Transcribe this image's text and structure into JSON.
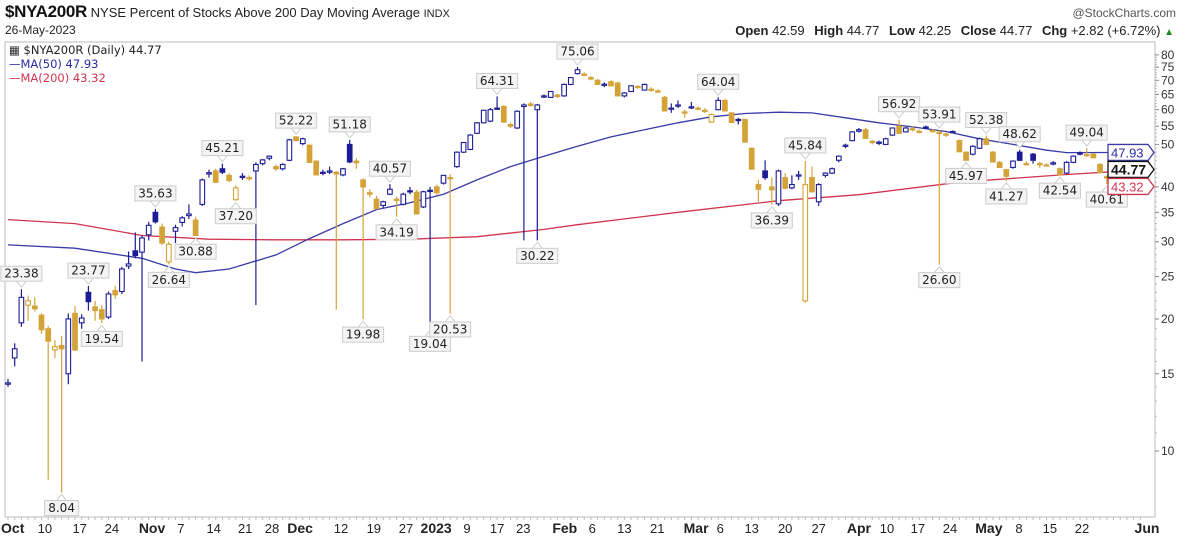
{
  "header": {
    "symbol": "$NYA200R",
    "description": "NYSE Percent of Stocks Above 200 Day Moving Average",
    "exchange": "INDX",
    "date": "26-May-2023",
    "copyright": "@StockCharts.com",
    "open_label": "Open",
    "open": "42.59",
    "high_label": "High",
    "high": "44.77",
    "low_label": "Low",
    "low": "42.25",
    "close_label": "Close",
    "close": "44.77",
    "chg_label": "Chg",
    "chg": "+2.82 (+6.72%)"
  },
  "legend": {
    "main": "$NYA200R (Daily) 44.77",
    "ma50": "MA(50) 47.93",
    "ma200": "MA(200) 43.32"
  },
  "colors": {
    "up": "#1c1c96",
    "down": "#d4a338",
    "ma50": "#3a3aa8",
    "ma200": "#d0344f"
  },
  "chart_data": {
    "type": "candlestick",
    "title": "$NYA200R NYSE Percent of Stocks Above 200 Day Moving Average",
    "scale": "log",
    "ylim": [
      8,
      82
    ],
    "y_ticks": [
      80,
      75,
      70,
      65,
      60,
      55,
      50,
      40,
      35,
      30,
      25,
      20,
      15,
      10
    ],
    "x_ticks": [
      [
        "Oct",
        0.7,
        true
      ],
      [
        "10",
        5.5,
        false
      ],
      [
        "17",
        10.7,
        false
      ],
      [
        "24",
        15.5,
        false
      ],
      [
        "Nov",
        21.5,
        true
      ],
      [
        "7",
        25.8,
        false
      ],
      [
        "14",
        30.7,
        false
      ],
      [
        "21",
        35.4,
        false
      ],
      [
        "28",
        39.4,
        false
      ],
      [
        "Dec",
        43.6,
        true
      ],
      [
        "12",
        49.7,
        false
      ],
      [
        "19",
        54.6,
        false
      ],
      [
        "27",
        59.4,
        false
      ],
      [
        "2023",
        63.9,
        true
      ],
      [
        "9",
        68.5,
        false
      ],
      [
        "17",
        73,
        false
      ],
      [
        "23",
        76.9,
        false
      ],
      [
        "Feb",
        83.1,
        true
      ],
      [
        "6",
        87.2,
        false
      ],
      [
        "13",
        92,
        false
      ],
      [
        "21",
        96.9,
        false
      ],
      [
        "Mar",
        102.7,
        true
      ],
      [
        "6",
        106.3,
        false
      ],
      [
        "13",
        111,
        false
      ],
      [
        "20",
        116,
        false
      ],
      [
        "27",
        121,
        false
      ],
      [
        "Apr",
        127,
        true
      ],
      [
        "10",
        131.2,
        false
      ],
      [
        "17",
        135.8,
        false
      ],
      [
        "24",
        140.6,
        false
      ],
      [
        "May",
        146.4,
        true
      ],
      [
        "8",
        150.9,
        false
      ],
      [
        "15",
        155.5,
        false
      ],
      [
        "22",
        160.3,
        false
      ],
      [
        "Jun",
        170,
        true
      ]
    ],
    "ohlc": [
      [
        14.2,
        14.6,
        14.0,
        14.3
      ],
      [
        16.3,
        17.6,
        15.6,
        17.1
      ],
      [
        19.6,
        23.38,
        19.2,
        22.4
      ],
      [
        21.5,
        22.6,
        19.8,
        22.0
      ],
      [
        21.4,
        22.4,
        20.8,
        21.1
      ],
      [
        20.4,
        20.6,
        18.5,
        18.9
      ],
      [
        19.0,
        19.3,
        8.6,
        17.8
      ],
      [
        17.0,
        17.9,
        16.3,
        17.3
      ],
      [
        17.4,
        18.3,
        8.04,
        17.1
      ],
      [
        15.0,
        20.6,
        14.2,
        20.0
      ],
      [
        20.6,
        21.4,
        16.9,
        17.0
      ],
      [
        19.6,
        20.5,
        19.0,
        20.1
      ],
      [
        23.0,
        23.77,
        20.9,
        21.9
      ],
      [
        21.3,
        22.0,
        19.8,
        20.9
      ],
      [
        21.0,
        21.5,
        19.54,
        20.0
      ],
      [
        20.2,
        23.1,
        20.0,
        22.8
      ],
      [
        23.2,
        23.8,
        22.2,
        22.7
      ],
      [
        23.1,
        26.3,
        22.8,
        26.0
      ],
      [
        26.4,
        28.5,
        26.0,
        26.7
      ],
      [
        28.6,
        31.5,
        27.5,
        27.9
      ],
      [
        28.4,
        31.0,
        16.0,
        30.6
      ],
      [
        31.1,
        33.3,
        30.2,
        32.7
      ],
      [
        35.0,
        35.63,
        33.0,
        33.3
      ],
      [
        32.4,
        33.0,
        29.5,
        29.8
      ],
      [
        27.0,
        30.0,
        26.64,
        29.6
      ],
      [
        31.7,
        32.8,
        29.8,
        32.3
      ],
      [
        33.2,
        34.3,
        32.5,
        34.0
      ],
      [
        34.4,
        36.5,
        33.8,
        34.7
      ],
      [
        33.6,
        34.2,
        30.88,
        31.0
      ],
      [
        36.5,
        41.8,
        36.2,
        41.5
      ],
      [
        42.8,
        43.8,
        42.0,
        43.1
      ],
      [
        43.5,
        44.0,
        40.8,
        41.0
      ],
      [
        44.0,
        45.21,
        42.8,
        43.2
      ],
      [
        42.5,
        43.0,
        41.0,
        41.4
      ],
      [
        37.4,
        40.3,
        37.2,
        39.8
      ],
      [
        42.2,
        43.0,
        41.5,
        42.3
      ],
      [
        42.0,
        42.5,
        41.3,
        41.8
      ],
      [
        43.5,
        45.5,
        21.5,
        45.0
      ],
      [
        45.2,
        46.3,
        44.8,
        46.1
      ],
      [
        46.5,
        47.2,
        46.0,
        47.0
      ],
      [
        44.5,
        45.0,
        43.5,
        44.0
      ],
      [
        44.0,
        45.3,
        43.6,
        45.0
      ],
      [
        46.0,
        51.5,
        45.8,
        51.2
      ],
      [
        52.0,
        52.22,
        50.8,
        51.0
      ],
      [
        50.2,
        51.8,
        49.8,
        51.5
      ],
      [
        49.8,
        50.0,
        45.5,
        45.5
      ],
      [
        45.8,
        46.0,
        42.5,
        42.6
      ],
      [
        43.2,
        43.8,
        42.5,
        43.0
      ],
      [
        43.2,
        44.5,
        42.8,
        43.5
      ],
      [
        43.2,
        43.5,
        21.0,
        42.8
      ],
      [
        42.6,
        44.2,
        42.3,
        44.0
      ],
      [
        50.0,
        51.18,
        45.3,
        45.6
      ],
      [
        45.8,
        46.5,
        44.0,
        45.4
      ],
      [
        41.5,
        41.8,
        19.98,
        40.0
      ],
      [
        38.8,
        39.5,
        37.8,
        38.5
      ],
      [
        37.5,
        38.2,
        35.5,
        35.7
      ],
      [
        36.3,
        37.2,
        35.8,
        37.0
      ],
      [
        38.5,
        40.57,
        38.3,
        39.5
      ],
      [
        37.5,
        38.0,
        34.19,
        37.3
      ],
      [
        36.5,
        38.8,
        36.3,
        38.5
      ],
      [
        39.2,
        40.0,
        38.5,
        39.0
      ],
      [
        38.9,
        39.4,
        34.6,
        34.7
      ],
      [
        36.0,
        39.2,
        35.8,
        39.0
      ],
      [
        39.3,
        40.0,
        19.04,
        39.1
      ],
      [
        40.0,
        40.5,
        38.3,
        38.8
      ],
      [
        40.8,
        42.6,
        40.5,
        42.5
      ],
      [
        42.0,
        42.8,
        20.53,
        42.0
      ],
      [
        44.5,
        48.2,
        44.2,
        48.0
      ],
      [
        48.0,
        50.6,
        47.8,
        50.5
      ],
      [
        48.7,
        52.8,
        48.5,
        52.5
      ],
      [
        53.0,
        56.2,
        52.8,
        56.0
      ],
      [
        56.0,
        60.0,
        55.8,
        59.8
      ],
      [
        56.5,
        60.5,
        56.2,
        60.0
      ],
      [
        60.5,
        64.31,
        60.0,
        60.2
      ],
      [
        61.0,
        61.5,
        56.0,
        56.2
      ],
      [
        55.5,
        56.0,
        54.5,
        55.0
      ],
      [
        54.5,
        59.8,
        54.2,
        59.5
      ],
      [
        61.0,
        62.0,
        30.22,
        61.5
      ],
      [
        61.8,
        62.5,
        61.0,
        61.3
      ],
      [
        60.0,
        61.8,
        30.22,
        61.5
      ],
      [
        64.3,
        65.0,
        63.8,
        64.5
      ],
      [
        64.0,
        66.2,
        63.8,
        66.0
      ],
      [
        64.8,
        65.2,
        63.8,
        64.3
      ],
      [
        64.5,
        68.8,
        64.2,
        68.5
      ],
      [
        68.5,
        71.2,
        68.2,
        71.0
      ],
      [
        72.5,
        75.06,
        72.2,
        74.0
      ],
      [
        72.3,
        73.0,
        71.5,
        72.0
      ],
      [
        71.0,
        71.5,
        70.0,
        70.5
      ],
      [
        70.0,
        70.5,
        68.3,
        68.5
      ],
      [
        68.2,
        69.2,
        67.5,
        68.6
      ],
      [
        69.5,
        70.0,
        67.8,
        68.0
      ],
      [
        69.0,
        69.5,
        64.3,
        64.5
      ],
      [
        64.5,
        65.8,
        64.0,
        65.5
      ],
      [
        66.0,
        68.2,
        65.8,
        68.0
      ],
      [
        67.8,
        68.2,
        67.0,
        67.5
      ],
      [
        66.5,
        68.8,
        66.3,
        68.5
      ],
      [
        66.8,
        67.5,
        66.0,
        66.5
      ],
      [
        66.2,
        66.8,
        65.5,
        66.0
      ],
      [
        64.0,
        64.5,
        59.5,
        59.6
      ],
      [
        60.4,
        62.0,
        59.0,
        60.5
      ],
      [
        61.3,
        63.0,
        60.5,
        61.5
      ],
      [
        59.3,
        60.0,
        57.5,
        59.0
      ],
      [
        60.8,
        62.5,
        60.2,
        60.9
      ],
      [
        60.5,
        61.0,
        59.8,
        60.2
      ],
      [
        59.8,
        60.5,
        59.0,
        59.5
      ],
      [
        56.2,
        58.8,
        56.0,
        58.5
      ],
      [
        60.0,
        64.04,
        59.8,
        63.0
      ],
      [
        63.0,
        63.5,
        59.5,
        59.6
      ],
      [
        59.0,
        59.2,
        56.0,
        56.1
      ],
      [
        57.0,
        57.5,
        55.5,
        56.8
      ],
      [
        57.0,
        57.2,
        50.5,
        50.6
      ],
      [
        49.0,
        49.2,
        43.8,
        43.9
      ],
      [
        40.5,
        41.5,
        37.0,
        39.5
      ],
      [
        43.5,
        46.0,
        41.5,
        42.0
      ],
      [
        40.0,
        42.0,
        36.39,
        39.4
      ],
      [
        36.6,
        43.8,
        36.2,
        43.5
      ],
      [
        42.0,
        43.0,
        39.5,
        39.7
      ],
      [
        39.8,
        42.5,
        39.5,
        40.5
      ],
      [
        42.5,
        43.5,
        41.5,
        42.6
      ],
      [
        22.0,
        45.84,
        21.8,
        40.5
      ],
      [
        42.0,
        44.5,
        38.8,
        39.0
      ],
      [
        37.0,
        40.8,
        36.2,
        40.5
      ],
      [
        42.5,
        43.2,
        42.0,
        43.0
      ],
      [
        43.0,
        44.3,
        42.8,
        44.0
      ],
      [
        46.0,
        47.2,
        45.5,
        47.0
      ],
      [
        49.5,
        50.2,
        49.0,
        49.8
      ],
      [
        51.0,
        53.6,
        50.8,
        53.4
      ],
      [
        53.6,
        54.5,
        53.2,
        54.0
      ],
      [
        54.0,
        54.5,
        51.5,
        51.6
      ],
      [
        50.8,
        51.2,
        50.0,
        50.5
      ],
      [
        50.4,
        51.0,
        49.8,
        50.6
      ],
      [
        50.0,
        51.8,
        49.8,
        51.5
      ],
      [
        52.5,
        54.6,
        52.3,
        54.5
      ],
      [
        55.0,
        56.92,
        52.8,
        53.0
      ],
      [
        53.4,
        54.8,
        53.2,
        54.5
      ],
      [
        54.3,
        55.0,
        53.5,
        54.0
      ],
      [
        53.4,
        54.0,
        53.0,
        53.6
      ],
      [
        54.8,
        55.2,
        54.2,
        54.5
      ],
      [
        53.8,
        54.2,
        53.2,
        53.5
      ],
      [
        53.3,
        53.91,
        26.6,
        53.2
      ],
      [
        52.8,
        53.2,
        52.0,
        52.5
      ],
      [
        53.3,
        53.8,
        53.0,
        53.5
      ],
      [
        51.0,
        51.3,
        48.0,
        48.1
      ],
      [
        48.0,
        48.2,
        45.97,
        46.0
      ],
      [
        47.5,
        49.8,
        47.2,
        49.5
      ],
      [
        49.0,
        51.8,
        48.8,
        51.5
      ],
      [
        51.5,
        52.38,
        49.8,
        50.0
      ],
      [
        48.0,
        48.3,
        45.5,
        45.6
      ],
      [
        45.5,
        45.8,
        44.2,
        44.3
      ],
      [
        43.8,
        44.0,
        41.27,
        42.3
      ],
      [
        44.3,
        46.0,
        44.0,
        45.8
      ],
      [
        48.0,
        48.62,
        45.8,
        46.0
      ],
      [
        45.2,
        45.8,
        44.8,
        45.2
      ],
      [
        47.5,
        47.8,
        45.2,
        46.0
      ],
      [
        45.2,
        45.6,
        44.2,
        45.0
      ],
      [
        44.9,
        45.3,
        44.5,
        44.8
      ],
      [
        45.1,
        45.8,
        44.8,
        45.4
      ],
      [
        44.0,
        44.3,
        42.54,
        42.6
      ],
      [
        43.0,
        45.8,
        42.8,
        45.5
      ],
      [
        45.5,
        47.2,
        45.3,
        47.0
      ],
      [
        47.8,
        48.2,
        47.2,
        47.5
      ],
      [
        47.1,
        49.04,
        46.8,
        47.4
      ],
      [
        47.5,
        47.8,
        46.5,
        46.6
      ],
      [
        45.0,
        45.3,
        43.0,
        43.1
      ],
      [
        42.2,
        42.5,
        40.61,
        41.95
      ],
      [
        42.59,
        44.77,
        42.25,
        44.77
      ]
    ],
    "ma50": [
      [
        0,
        29.5
      ],
      [
        10,
        29.0
      ],
      [
        20,
        27.5
      ],
      [
        25,
        26.0
      ],
      [
        28,
        25.5
      ],
      [
        33,
        26.0
      ],
      [
        40,
        28.0
      ],
      [
        45,
        30.5
      ],
      [
        50,
        33.0
      ],
      [
        55,
        35.5
      ],
      [
        60,
        36.8
      ],
      [
        65,
        38.5
      ],
      [
        70,
        41.5
      ],
      [
        75,
        44.5
      ],
      [
        80,
        47.0
      ],
      [
        85,
        49.5
      ],
      [
        90,
        52.0
      ],
      [
        95,
        54.0
      ],
      [
        100,
        56.0
      ],
      [
        105,
        57.8
      ],
      [
        110,
        58.8
      ],
      [
        115,
        59.2
      ],
      [
        120,
        59.0
      ],
      [
        125,
        57.5
      ],
      [
        130,
        56.0
      ],
      [
        135,
        54.8
      ],
      [
        140,
        53.5
      ],
      [
        145,
        51.5
      ],
      [
        150,
        50.0
      ],
      [
        155,
        48.5
      ],
      [
        158,
        47.9
      ],
      [
        165,
        47.93
      ]
    ],
    "ma200": [
      [
        0,
        33.7
      ],
      [
        10,
        33.0
      ],
      [
        20,
        31.0
      ],
      [
        30,
        30.4
      ],
      [
        40,
        30.3
      ],
      [
        50,
        30.3
      ],
      [
        60,
        30.4
      ],
      [
        70,
        30.8
      ],
      [
        80,
        32.0
      ],
      [
        85,
        32.8
      ],
      [
        100,
        35.0
      ],
      [
        115,
        37.2
      ],
      [
        127,
        38.4
      ],
      [
        142,
        41.0
      ],
      [
        158,
        42.7
      ],
      [
        165,
        43.32
      ]
    ],
    "annotations": [
      [
        "23.38",
        2,
        "above"
      ],
      [
        "8.04",
        8,
        "below"
      ],
      [
        "23.77",
        12,
        "above"
      ],
      [
        "19.54",
        14,
        "below"
      ],
      [
        "35.63",
        22,
        "above"
      ],
      [
        "26.64",
        24,
        "below"
      ],
      [
        "30.88",
        28,
        "below"
      ],
      [
        "45.21",
        32,
        "above"
      ],
      [
        "37.20",
        34,
        "below"
      ],
      [
        "52.22",
        43,
        "above"
      ],
      [
        "51.18",
        51,
        "above"
      ],
      [
        "19.98",
        53,
        "below"
      ],
      [
        "40.57",
        57,
        "above"
      ],
      [
        "34.19",
        58,
        "below"
      ],
      [
        "19.04",
        63,
        "below"
      ],
      [
        "20.53",
        66,
        "below"
      ],
      [
        "64.31",
        73,
        "above"
      ],
      [
        "30.22",
        79,
        "below"
      ],
      [
        "75.06",
        85,
        "above"
      ],
      [
        "64.04",
        106,
        "above"
      ],
      [
        "36.39",
        114,
        "below"
      ],
      [
        "45.84",
        119,
        "above"
      ],
      [
        "56.92",
        133,
        "above"
      ],
      [
        "53.91",
        139,
        "above"
      ],
      [
        "26.60",
        139,
        "below"
      ],
      [
        "45.97",
        143,
        "below"
      ],
      [
        "52.38",
        146,
        "above"
      ],
      [
        "41.27",
        149,
        "below"
      ],
      [
        "48.62",
        151,
        "above"
      ],
      [
        "42.54",
        157,
        "below"
      ],
      [
        "49.04",
        161,
        "above"
      ],
      [
        "40.61",
        164,
        "below"
      ]
    ],
    "last_tags": [
      [
        "47.93",
        "ma50"
      ],
      [
        "43.32",
        "ma200"
      ],
      [
        "44.77",
        "price"
      ]
    ]
  }
}
